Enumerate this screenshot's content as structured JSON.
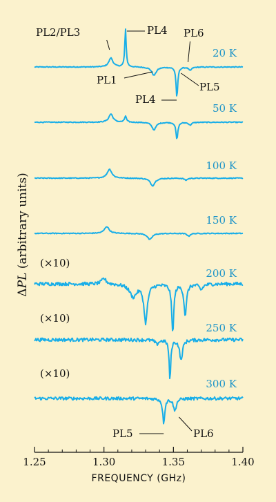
{
  "chart_data": {
    "type": "line",
    "xlabel": "FREQUENCY (GHz)",
    "ylabel": "ΔPL (arbitrary units)",
    "ylabel_delta": "Δ",
    "ylabel_italic": "PL",
    "ylabel_rest": " (arbitrary units)",
    "xlim": [
      1.25,
      1.4
    ],
    "x_ticks": [
      {
        "value": 1.25,
        "label": "1.25"
      },
      {
        "value": 1.3,
        "label": "1.30"
      },
      {
        "value": 1.35,
        "label": "1.35"
      },
      {
        "value": 1.4,
        "label": "1.40"
      }
    ],
    "background": "#fbf2cd",
    "trace_color": "#18aee8",
    "temp_color": "#1a93c8",
    "series": [
      {
        "name": "20 K",
        "offset": 0,
        "noise": 0.6,
        "features": [
          {
            "x": 1.305,
            "amp": 13,
            "w": 0.0018
          },
          {
            "x": 1.3155,
            "amp": 55,
            "w": 0.0006
          },
          {
            "x": 1.336,
            "amp": -12,
            "w": 0.002
          },
          {
            "x": 1.3525,
            "amp": -45,
            "w": 0.0007
          },
          {
            "x": 1.362,
            "amp": -5,
            "w": 0.0012
          }
        ]
      },
      {
        "name": "50 K",
        "offset": 0,
        "noise": 0.6,
        "features": [
          {
            "x": 1.305,
            "amp": 12,
            "w": 0.0018
          },
          {
            "x": 1.3155,
            "amp": 9,
            "w": 0.0008
          },
          {
            "x": 1.336,
            "amp": -11,
            "w": 0.0018
          },
          {
            "x": 1.3525,
            "amp": -25,
            "w": 0.0008
          },
          {
            "x": 1.362,
            "amp": -4,
            "w": 0.0012
          }
        ]
      },
      {
        "name": "100 K",
        "offset": 0,
        "noise": 0.6,
        "features": [
          {
            "x": 1.304,
            "amp": 13,
            "w": 0.002
          },
          {
            "x": 1.335,
            "amp": -11,
            "w": 0.002
          },
          {
            "x": 1.359,
            "amp": -3,
            "w": 0.0012
          }
        ]
      },
      {
        "name": "150 K",
        "offset": 0,
        "noise": 0.6,
        "features": [
          {
            "x": 1.302,
            "amp": 10,
            "w": 0.002
          },
          {
            "x": 1.333,
            "amp": -9,
            "w": 0.002
          },
          {
            "x": 1.361,
            "amp": -4,
            "w": 0.0012
          }
        ]
      },
      {
        "name": "200 K",
        "offset": 0,
        "scale_label": "(×10)",
        "noise": 2.4,
        "features": [
          {
            "x": 1.3,
            "amp": 8,
            "w": 0.002
          },
          {
            "x": 1.321,
            "amp": -18,
            "w": 0.003
          },
          {
            "x": 1.33,
            "amp": -55,
            "w": 0.0015
          },
          {
            "x": 1.3495,
            "amp": -70,
            "w": 0.0009
          },
          {
            "x": 1.3585,
            "amp": -45,
            "w": 0.0011
          },
          {
            "x": 1.37,
            "amp": -8,
            "w": 0.0015
          }
        ]
      },
      {
        "name": "250 K",
        "offset": 0,
        "scale_label": "(×10)",
        "noise": 2.4,
        "features": [
          {
            "x": 1.3475,
            "amp": -58,
            "w": 0.0007
          },
          {
            "x": 1.3555,
            "amp": -30,
            "w": 0.0012
          },
          {
            "x": 1.338,
            "amp": -6,
            "w": 0.0015
          }
        ]
      },
      {
        "name": "300 K",
        "offset": 0,
        "scale_label": "(×10)",
        "noise": 2.2,
        "features": [
          {
            "x": 1.343,
            "amp": -35,
            "w": 0.0009
          },
          {
            "x": 1.351,
            "amp": -18,
            "w": 0.0012
          }
        ]
      }
    ],
    "annotations": [
      {
        "text": "PL2/PL3",
        "series": "20 K",
        "x": 1.305
      },
      {
        "text": "PL4",
        "series": "20 K",
        "x": 1.3155
      },
      {
        "text": "PL6",
        "series": "20 K",
        "x": 1.362
      },
      {
        "text": "PL1",
        "series": "20 K",
        "x": 1.336
      },
      {
        "text": "PL5",
        "series": "20 K",
        "x": 1.3525
      },
      {
        "text": "PL4",
        "series": "20 K",
        "x": 1.3525
      },
      {
        "text": "PL5",
        "series": "300 K",
        "x": 1.343
      },
      {
        "text": "PL6",
        "series": "300 K",
        "x": 1.351
      }
    ]
  }
}
